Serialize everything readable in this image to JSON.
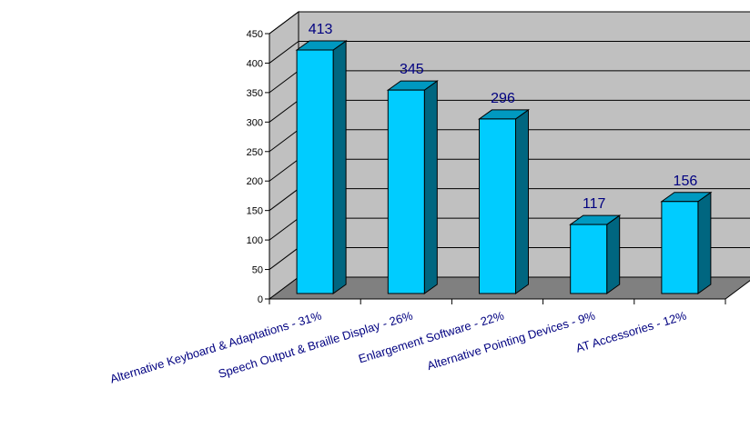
{
  "chart_data": {
    "type": "bar",
    "categories": [
      "Alternative Keyboard & Adaptations - 31%",
      "Speech Output & Braille Display - 26%",
      "Enlargement Software - 22%",
      "Alternative Pointing Devices - 9%",
      "AT Accessories - 12%"
    ],
    "values": [
      413,
      345,
      296,
      117,
      156
    ],
    "data_labels": [
      "413",
      "345",
      "296",
      "117",
      "156"
    ],
    "ylim": [
      0,
      450
    ],
    "yticks": [
      0,
      50,
      100,
      150,
      200,
      250,
      300,
      350,
      400,
      450
    ],
    "ytick_labels": [
      "0",
      "50",
      "100",
      "150",
      "200",
      "250",
      "300",
      "350",
      "400",
      "450"
    ],
    "grid": true,
    "three_d": true,
    "legend": "none",
    "colors": {
      "bar_front": "#00CCFF",
      "bar_top": "#0099C0",
      "bar_side": "#006680",
      "wall": "#C0C0C0",
      "floor": "#808080",
      "label_text": "#000080"
    }
  }
}
